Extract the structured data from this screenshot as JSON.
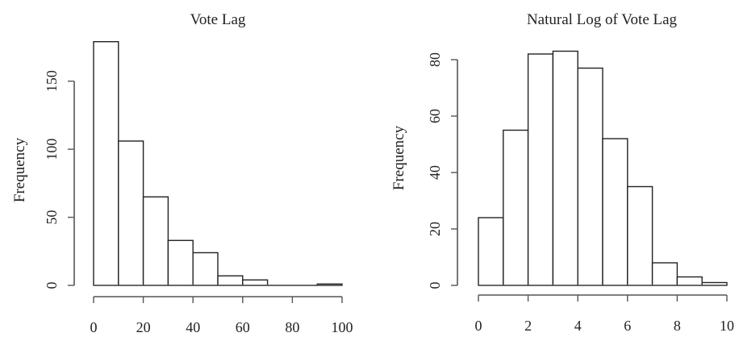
{
  "chart_data": [
    {
      "type": "bar",
      "subtype": "histogram",
      "title": "Vote Lag",
      "xlabel": "",
      "ylabel": "Frequency",
      "bin_edges": [
        0,
        10,
        20,
        30,
        40,
        50,
        60,
        70,
        80,
        90,
        100
      ],
      "values": [
        179,
        106,
        65,
        33,
        24,
        7,
        4,
        0,
        0,
        1
      ],
      "xlim": [
        0,
        100
      ],
      "ylim": [
        0,
        180
      ],
      "xticks": [
        0,
        20,
        40,
        60,
        80,
        100
      ],
      "xtick_labels": [
        "0",
        "20",
        "40",
        "60",
        "80",
        "100"
      ],
      "yticks": [
        0,
        50,
        100,
        150
      ],
      "ytick_labels": [
        "0",
        "50",
        "100",
        "150"
      ],
      "grid": false,
      "bar_fill": "#ffffff",
      "bar_stroke": "#222222"
    },
    {
      "type": "bar",
      "subtype": "histogram",
      "title": "Natural Log of Vote Lag",
      "xlabel": "",
      "ylabel": "Frequency",
      "bin_edges": [
        0,
        1,
        2,
        3,
        4,
        5,
        6,
        7,
        8,
        9,
        10
      ],
      "values": [
        24,
        55,
        82,
        83,
        77,
        52,
        35,
        8,
        3,
        1
      ],
      "xlim": [
        0,
        10
      ],
      "ylim": [
        0,
        84
      ],
      "xticks": [
        0,
        2,
        4,
        6,
        8,
        10
      ],
      "xtick_labels": [
        "0",
        "2",
        "4",
        "6",
        "8",
        "10"
      ],
      "yticks": [
        0,
        20,
        40,
        60,
        80
      ],
      "ytick_labels": [
        "0",
        "20",
        "40",
        "60",
        "80"
      ],
      "grid": false,
      "bar_fill": "#ffffff",
      "bar_stroke": "#222222"
    }
  ]
}
